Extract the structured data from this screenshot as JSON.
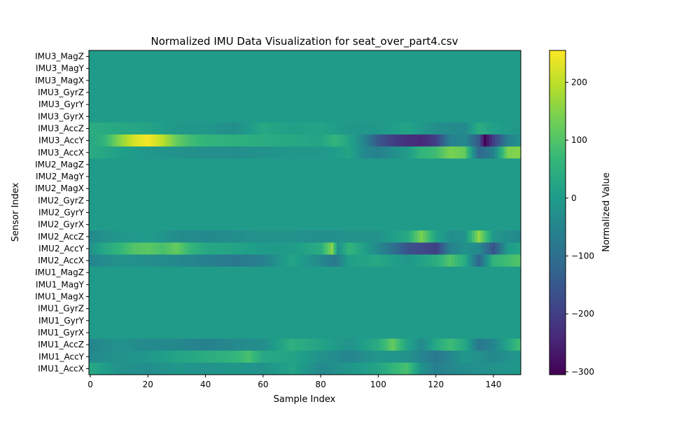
{
  "chart_data": {
    "type": "heatmap",
    "title": "Normalized IMU Data Visualization for seat_over_part4.csv",
    "xlabel": "Sample Index",
    "ylabel": "Sensor Index",
    "colorbar_label": "Normalized Value",
    "colormap": "viridis",
    "xlim": [
      -0.5,
      149.5
    ],
    "xticks": [
      0,
      20,
      40,
      60,
      80,
      100,
      120,
      140
    ],
    "xtick_labels": [
      "0",
      "20",
      "40",
      "60",
      "80",
      "100",
      "120",
      "140"
    ],
    "clim": [
      -305,
      255
    ],
    "colorbar_ticks": [
      -300,
      -200,
      -100,
      0,
      100,
      200
    ],
    "colorbar_tick_labels": [
      "−300",
      "−200",
      "−100",
      "0",
      "100",
      "200"
    ],
    "rows_top_to_bottom": [
      "IMU3_MagZ",
      "IMU3_MagY",
      "IMU3_MagX",
      "IMU3_GyrZ",
      "IMU3_GyrY",
      "IMU3_GyrX",
      "IMU3_AccZ",
      "IMU3_AccY",
      "IMU3_AccX",
      "IMU2_MagZ",
      "IMU2_MagY",
      "IMU2_MagX",
      "IMU2_GyrZ",
      "IMU2_GyrY",
      "IMU2_GyrX",
      "IMU2_AccZ",
      "IMU2_AccY",
      "IMU2_AccX",
      "IMU1_MagZ",
      "IMU1_MagY",
      "IMU1_MagX",
      "IMU1_GyrZ",
      "IMU1_GyrY",
      "IMU1_GyrX",
      "IMU1_AccZ",
      "IMU1_AccY",
      "IMU1_AccX"
    ],
    "constant_rows": {
      "IMU3_MagZ": 0,
      "IMU3_MagY": 0,
      "IMU3_MagX": 0,
      "IMU3_GyrZ": 0,
      "IMU3_GyrY": 0,
      "IMU3_GyrX": 0,
      "IMU2_MagZ": 0,
      "IMU2_MagY": 0,
      "IMU2_MagX": 0,
      "IMU2_GyrZ": 0,
      "IMU2_GyrY": 0,
      "IMU2_GyrX": 0,
      "IMU1_MagZ": 0,
      "IMU1_MagY": 0,
      "IMU1_MagX": 0,
      "IMU1_GyrZ": 0,
      "IMU1_GyrY": 0,
      "IMU1_GyrX": 0
    },
    "row_keypoints": {
      "IMU3_AccZ": [
        [
          0,
          40
        ],
        [
          10,
          30
        ],
        [
          20,
          20
        ],
        [
          30,
          -10
        ],
        [
          40,
          -10
        ],
        [
          50,
          -30
        ],
        [
          60,
          30
        ],
        [
          70,
          10
        ],
        [
          80,
          20
        ],
        [
          90,
          -10
        ],
        [
          100,
          -10
        ],
        [
          110,
          20
        ],
        [
          120,
          -30
        ],
        [
          130,
          -40
        ],
        [
          135,
          40
        ],
        [
          140,
          10
        ],
        [
          149,
          -10
        ]
      ],
      "IMU3_AccY": [
        [
          0,
          30
        ],
        [
          5,
          60
        ],
        [
          10,
          150
        ],
        [
          15,
          220
        ],
        [
          20,
          250
        ],
        [
          25,
          200
        ],
        [
          30,
          120
        ],
        [
          35,
          80
        ],
        [
          40,
          60
        ],
        [
          50,
          50
        ],
        [
          60,
          40
        ],
        [
          70,
          30
        ],
        [
          80,
          20
        ],
        [
          85,
          60
        ],
        [
          90,
          20
        ],
        [
          95,
          -50
        ],
        [
          100,
          -150
        ],
        [
          105,
          -200
        ],
        [
          110,
          -230
        ],
        [
          115,
          -240
        ],
        [
          120,
          -200
        ],
        [
          125,
          -60
        ],
        [
          130,
          -40
        ],
        [
          135,
          -150
        ],
        [
          137,
          -300
        ],
        [
          140,
          -200
        ],
        [
          145,
          -60
        ],
        [
          149,
          -20
        ]
      ],
      "IMU3_AccX": [
        [
          0,
          40
        ],
        [
          10,
          10
        ],
        [
          20,
          -10
        ],
        [
          30,
          -20
        ],
        [
          40,
          -30
        ],
        [
          50,
          -30
        ],
        [
          60,
          -20
        ],
        [
          70,
          -10
        ],
        [
          80,
          -10
        ],
        [
          90,
          20
        ],
        [
          95,
          -40
        ],
        [
          100,
          -60
        ],
        [
          110,
          0
        ],
        [
          115,
          60
        ],
        [
          120,
          80
        ],
        [
          125,
          140
        ],
        [
          130,
          120
        ],
        [
          135,
          -120
        ],
        [
          140,
          -60
        ],
        [
          145,
          140
        ],
        [
          149,
          150
        ]
      ],
      "IMU2_AccZ": [
        [
          0,
          -40
        ],
        [
          10,
          -10
        ],
        [
          20,
          0
        ],
        [
          30,
          -30
        ],
        [
          40,
          -40
        ],
        [
          50,
          -30
        ],
        [
          60,
          -20
        ],
        [
          70,
          -20
        ],
        [
          80,
          -30
        ],
        [
          90,
          -20
        ],
        [
          100,
          -20
        ],
        [
          110,
          30
        ],
        [
          115,
          140
        ],
        [
          120,
          20
        ],
        [
          125,
          -30
        ],
        [
          130,
          -20
        ],
        [
          135,
          160
        ],
        [
          140,
          -10
        ],
        [
          149,
          -40
        ]
      ],
      "IMU2_AccY": [
        [
          0,
          -20
        ],
        [
          5,
          30
        ],
        [
          10,
          60
        ],
        [
          15,
          100
        ],
        [
          20,
          110
        ],
        [
          25,
          90
        ],
        [
          30,
          120
        ],
        [
          35,
          60
        ],
        [
          40,
          30
        ],
        [
          50,
          20
        ],
        [
          60,
          0
        ],
        [
          70,
          0
        ],
        [
          80,
          40
        ],
        [
          84,
          150
        ],
        [
          86,
          -20
        ],
        [
          90,
          60
        ],
        [
          100,
          -40
        ],
        [
          110,
          -160
        ],
        [
          115,
          -180
        ],
        [
          120,
          -200
        ],
        [
          125,
          -60
        ],
        [
          130,
          -20
        ],
        [
          135,
          -40
        ],
        [
          140,
          -160
        ],
        [
          145,
          0
        ],
        [
          149,
          20
        ]
      ],
      "IMU2_AccX": [
        [
          0,
          -50
        ],
        [
          10,
          -20
        ],
        [
          20,
          -30
        ],
        [
          30,
          -40
        ],
        [
          40,
          -60
        ],
        [
          50,
          -80
        ],
        [
          60,
          -60
        ],
        [
          70,
          20
        ],
        [
          80,
          -40
        ],
        [
          85,
          -80
        ],
        [
          90,
          10
        ],
        [
          100,
          30
        ],
        [
          110,
          -10
        ],
        [
          120,
          40
        ],
        [
          125,
          100
        ],
        [
          130,
          40
        ],
        [
          135,
          -120
        ],
        [
          140,
          60
        ],
        [
          149,
          100
        ]
      ],
      "IMU1_AccZ": [
        [
          0,
          -50
        ],
        [
          10,
          -20
        ],
        [
          20,
          -40
        ],
        [
          30,
          -40
        ],
        [
          40,
          -60
        ],
        [
          50,
          -40
        ],
        [
          60,
          -30
        ],
        [
          70,
          50
        ],
        [
          80,
          20
        ],
        [
          90,
          -20
        ],
        [
          100,
          40
        ],
        [
          105,
          120
        ],
        [
          110,
          20
        ],
        [
          115,
          -40
        ],
        [
          120,
          30
        ],
        [
          125,
          80
        ],
        [
          130,
          30
        ],
        [
          135,
          -80
        ],
        [
          140,
          -50
        ],
        [
          149,
          80
        ]
      ],
      "IMU1_AccY": [
        [
          0,
          -40
        ],
        [
          10,
          -20
        ],
        [
          20,
          -10
        ],
        [
          30,
          20
        ],
        [
          40,
          40
        ],
        [
          50,
          60
        ],
        [
          55,
          90
        ],
        [
          60,
          30
        ],
        [
          70,
          20
        ],
        [
          80,
          -20
        ],
        [
          90,
          -50
        ],
        [
          100,
          -10
        ],
        [
          110,
          -20
        ],
        [
          120,
          -80
        ],
        [
          130,
          -10
        ],
        [
          140,
          -40
        ],
        [
          149,
          -10
        ]
      ],
      "IMU1_AccX": [
        [
          0,
          30
        ],
        [
          10,
          -20
        ],
        [
          20,
          -30
        ],
        [
          30,
          -10
        ],
        [
          40,
          -20
        ],
        [
          50,
          -10
        ],
        [
          60,
          -20
        ],
        [
          70,
          20
        ],
        [
          80,
          -40
        ],
        [
          90,
          -10
        ],
        [
          100,
          20
        ],
        [
          105,
          60
        ],
        [
          110,
          90
        ],
        [
          115,
          -20
        ],
        [
          120,
          -60
        ],
        [
          130,
          -30
        ],
        [
          140,
          -20
        ],
        [
          149,
          -10
        ]
      ]
    }
  }
}
